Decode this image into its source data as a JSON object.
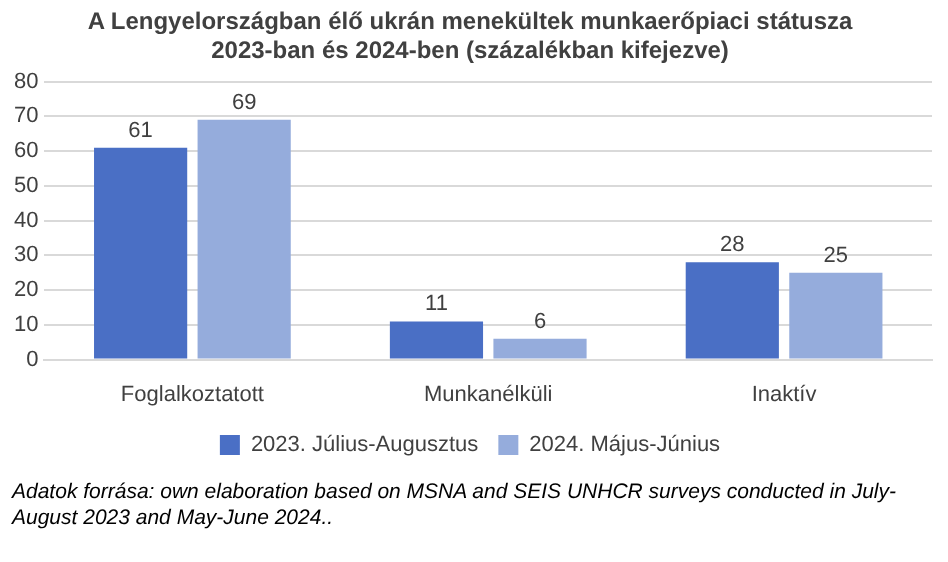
{
  "chart_data": {
    "type": "bar",
    "title": "A Lengyelországban élő ukrán menekültek munkaerőpiaci státusza 2023-ban és 2024-ben (százalékban kifejezve)",
    "categories": [
      "Foglalkoztatott",
      "Munkanélküli",
      "Inaktív"
    ],
    "series": [
      {
        "name": "2023. Július-Augusztus",
        "color": "#4a6fc5",
        "values": [
          61,
          11,
          28
        ]
      },
      {
        "name": "2024. Május-Június",
        "color": "#95acdc",
        "values": [
          69,
          6,
          25
        ]
      }
    ],
    "ylim": [
      0,
      80
    ],
    "yticks": [
      0,
      10,
      20,
      30,
      40,
      50,
      60,
      70,
      80
    ],
    "grid": "y",
    "legend": "bottom",
    "data_labels": true,
    "annotations": [
      "Adatok forrása: own elaboration based on MSNA and SEIS UNHCR surveys conducted in July-August 2023 and May-June 2024.."
    ]
  }
}
